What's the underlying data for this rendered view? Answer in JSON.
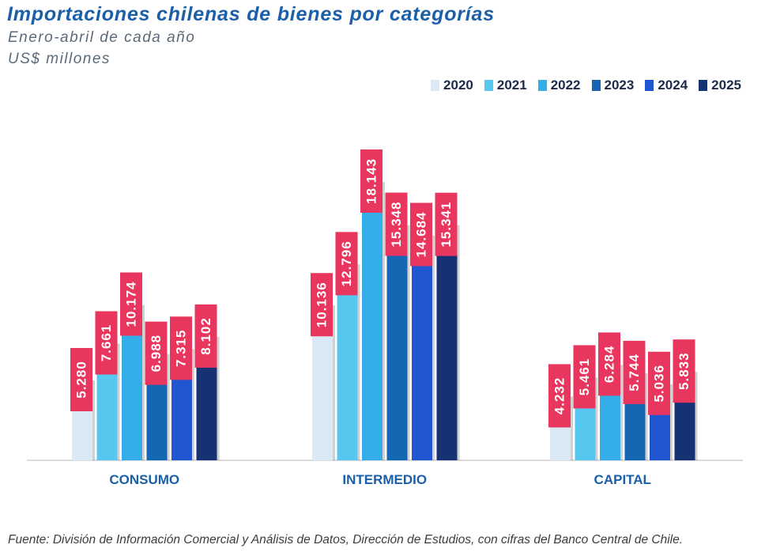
{
  "header": {
    "title": "Importaciones chilenas de bienes por categorías",
    "subtitle_1": "Enero-abril de cada año",
    "subtitle_2": "US$ millones"
  },
  "source": "Fuente: División de Información Comercial y Análisis de Datos, Dirección de Estudios, con cifras del Banco Central de Chile.",
  "colors": {
    "2020": "#dbe9f6",
    "2021": "#56c8f0",
    "2022": "#33aee8",
    "2023": "#1567b4",
    "2024": "#2057d0",
    "2025": "#173274",
    "label_bg": "#e8365e",
    "category_text": "#1a5fa8"
  },
  "chart_data": {
    "type": "bar",
    "title": "Importaciones chilenas de bienes por categorías",
    "subtitle": "Enero-abril de cada año",
    "ylabel": "US$ millones",
    "categories": [
      "CONSUMO",
      "INTERMEDIO",
      "CAPITAL"
    ],
    "series": [
      {
        "name": "2020",
        "values": [
          5280,
          10136,
          4232
        ],
        "labels": [
          "5.280",
          "10.136",
          "4.232"
        ]
      },
      {
        "name": "2021",
        "values": [
          7661,
          12796,
          5461
        ],
        "labels": [
          "7.661",
          "12.796",
          "5.461"
        ]
      },
      {
        "name": "2022",
        "values": [
          10174,
          18143,
          6284
        ],
        "labels": [
          "10.174",
          "18.143",
          "6.284"
        ]
      },
      {
        "name": "2023",
        "values": [
          6988,
          15348,
          5744
        ],
        "labels": [
          "6.988",
          "15.348",
          "5.744"
        ]
      },
      {
        "name": "2024",
        "values": [
          7315,
          14684,
          5036
        ],
        "labels": [
          "7.315",
          "14.684",
          "5.036"
        ]
      },
      {
        "name": "2025",
        "values": [
          8102,
          15341,
          5833
        ],
        "labels": [
          "8.102",
          "15.341",
          "5.833"
        ]
      }
    ],
    "ylim": [
      0,
      18143
    ],
    "legend": "top-right",
    "grid": false
  }
}
